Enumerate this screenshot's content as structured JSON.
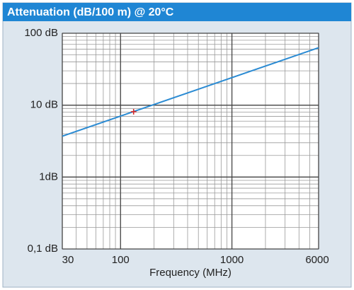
{
  "chart_data": {
    "type": "line",
    "title": "Attenuation (dB/100 m) @ 20°C",
    "xlabel": "Frequency (MHz)",
    "x": [
      30,
      6000
    ],
    "values": [
      3.7,
      63
    ],
    "color": "#2b8bd3",
    "marker": {
      "x": 131,
      "value": 8.1,
      "color": "#d42a2a"
    },
    "xscale": "log",
    "yscale": "log",
    "grid": true,
    "xlim": [
      30,
      6000
    ],
    "xticks": [
      30,
      100,
      1000,
      6000
    ],
    "ylim": [
      0.1,
      100
    ],
    "yticks": [
      {
        "value": 0.1,
        "label": "0,1 dB"
      },
      {
        "value": 1,
        "label": "1dB"
      },
      {
        "value": 10,
        "label": "10 dB"
      },
      {
        "value": 100,
        "label": "100 dB"
      }
    ]
  }
}
